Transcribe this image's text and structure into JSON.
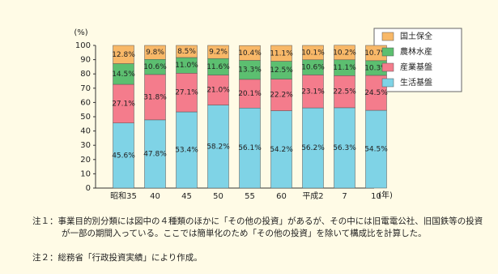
{
  "chart_data": {
    "type": "stacked_bar",
    "y_label": "(%)",
    "x_label": "(年)",
    "categories": [
      "昭和35",
      "40",
      "45",
      "50",
      "55",
      "60",
      "平成2",
      "7",
      "10"
    ],
    "ylim": [
      0,
      100
    ],
    "yticks": [
      0,
      10,
      20,
      30,
      40,
      50,
      60,
      70,
      80,
      90,
      100
    ],
    "series": [
      {
        "name": "生活基盤",
        "color": "#7fd3e6",
        "values": [
          45.6,
          47.8,
          53.4,
          58.2,
          56.1,
          54.2,
          56.2,
          56.3,
          54.5
        ],
        "value_labels": [
          "45.6%",
          "47.8%",
          "53.4%",
          "58.2%",
          "56.1%",
          "54.2%",
          "56.2%",
          "56.3%",
          "54.5%"
        ]
      },
      {
        "name": "産業基盤",
        "color": "#f47c8c",
        "values": [
          27.1,
          31.8,
          27.1,
          21,
          20.1,
          22.2,
          23.1,
          22.5,
          24.5
        ],
        "value_labels": [
          "27.1%",
          "31.8%",
          "27.1%",
          "21.0%",
          "20.1%",
          "22.2%",
          "23.1%",
          "22.5%",
          "24.5%"
        ]
      },
      {
        "name": "農林水産",
        "color": "#5cbf70",
        "values": [
          14.5,
          10.6,
          11,
          11.6,
          13.3,
          12.5,
          10.6,
          11.1,
          10.3
        ],
        "value_labels": [
          "14.5%",
          "10.6%",
          "11.0%",
          "11.6%",
          "13.3%",
          "12.5%",
          "10.6%",
          "11.1%",
          "10.3%"
        ]
      },
      {
        "name": "国土保全",
        "color": "#f8b868",
        "values": [
          12.8,
          9.8,
          8.5,
          9.2,
          10.4,
          11.1,
          10.1,
          10.2,
          10.7
        ],
        "value_labels": [
          "12.8%",
          "9.8%",
          "8.5%",
          "9.2%",
          "10.4%",
          "11.1%",
          "10.1%",
          "10.2%",
          "10.7%"
        ]
      }
    ],
    "notes": [
      "注１：事業目的別分類には図中の４種類のほかに「その他の投資」があるが、その中には旧電電公社、旧国鉄等の投資が一部の期間入っている。ここでは簡単化のため「その他の投資」を除いて構成比を計算した。",
      "注２：総務省「行政投資実績」により作成。"
    ]
  }
}
